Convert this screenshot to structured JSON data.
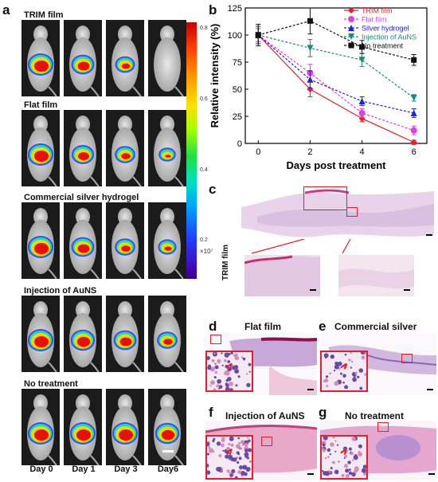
{
  "panel_labels": {
    "a": "a",
    "b": "b",
    "c": "c",
    "d": "d",
    "e": "e",
    "f": "f",
    "g": "g"
  },
  "panel_a": {
    "groups": [
      "TRIM film",
      "Flat film",
      "Commercial silver hydrogel",
      "Injection of AuNS",
      "No treatment"
    ],
    "days": [
      "Day 0",
      "Day 1",
      "Day 3",
      "Day6"
    ],
    "colorbar_ticks": [
      "0.8",
      "0.6",
      "0.4",
      "0.2"
    ],
    "colorbar_unit": "×10⁷"
  },
  "chart_data": {
    "type": "line",
    "xlabel": "Days post treatment",
    "ylabel": "Relative intensity (%)",
    "x": [
      0,
      2,
      4,
      6
    ],
    "xlim": [
      -0.5,
      6.5
    ],
    "ylim": [
      0,
      125
    ],
    "xticks": [
      "0",
      "2",
      "4",
      "6"
    ],
    "yticks": [
      "0",
      "25",
      "50",
      "75",
      "100",
      "125"
    ],
    "legend_position": "top-right",
    "series": [
      {
        "name": "TRIM film",
        "values": [
          100,
          50,
          23,
          1
        ],
        "errors": [
          6,
          7,
          3,
          2
        ],
        "color": "#e0202a",
        "marker": "diamond",
        "dash": "solid"
      },
      {
        "name": "Flat film",
        "values": [
          100,
          65,
          28,
          12
        ],
        "errors": [
          8,
          8,
          4,
          4
        ],
        "color": "#e040e0",
        "marker": "circle",
        "dash": "dash"
      },
      {
        "name": "Silver hydrogel",
        "values": [
          100,
          59,
          39,
          28
        ],
        "errors": [
          8,
          8,
          4,
          4
        ],
        "color": "#2020e0",
        "marker": "triangle",
        "dash": "dash"
      },
      {
        "name": "Injection of AuNS",
        "values": [
          100,
          88,
          77,
          42
        ],
        "errors": [
          8,
          8,
          6,
          3
        ],
        "color": "#1a8a7a",
        "marker": "triangle-down",
        "dash": "dash"
      },
      {
        "name": "No treatment",
        "values": [
          100,
          113,
          89,
          77
        ],
        "errors": [
          10,
          12,
          6,
          5
        ],
        "color": "#111111",
        "marker": "square",
        "dash": "dash"
      }
    ]
  },
  "panel_c": {
    "side_label": "TRIM film"
  },
  "panel_d": {
    "title": "Flat film"
  },
  "panel_e": {
    "title": "Commercial silver hydrogel"
  },
  "panel_f": {
    "title": "Injection of AuNS"
  },
  "panel_g": {
    "title": "No treatment"
  },
  "colors": {
    "inset_border": "#e0202a",
    "tissue_pink": "#e7b8d6",
    "tissue_purple": "#8a6ab8"
  }
}
